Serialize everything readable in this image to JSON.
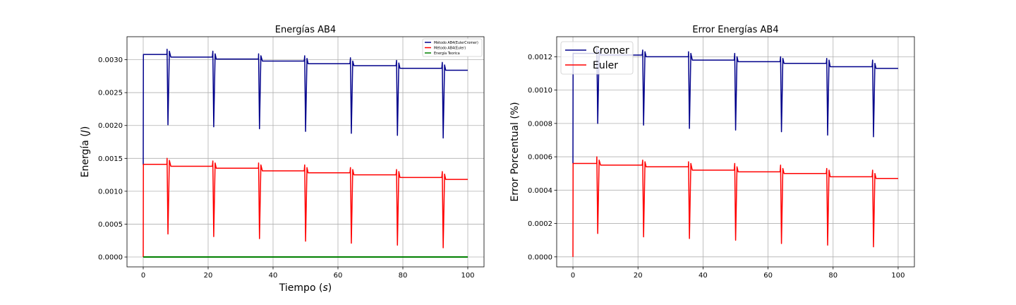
{
  "chart_data": [
    {
      "type": "line",
      "title": "Energías AB4",
      "xlabel": "Tiempo ($s$)",
      "ylabel": "Energía ($J$)",
      "xlabel_display": [
        "Tiempo (",
        "s",
        ")"
      ],
      "ylabel_display": [
        "Energía (",
        "J",
        ")"
      ],
      "xlim": [
        -5,
        105
      ],
      "ylim": [
        -0.00015,
        0.00335
      ],
      "xticks": [
        0,
        20,
        40,
        60,
        80,
        100
      ],
      "xtick_labels": [
        "0",
        "20",
        "40",
        "60",
        "80",
        "100"
      ],
      "yticks": [
        0,
        0.0005,
        0.001,
        0.0015,
        0.002,
        0.0025,
        0.003
      ],
      "ytick_labels": [
        "0.0000",
        "0.0005",
        "0.0010",
        "0.0015",
        "0.0020",
        "0.0025",
        "0.0030"
      ],
      "grid": true,
      "legend_position": "top-right",
      "legend_size": "small",
      "series": [
        {
          "name": "Método AB4(EulerCromer)",
          "color": "#00008b",
          "x_start": 0,
          "x_end": 100,
          "initial_value": 0.0014,
          "plateaus": [
            {
              "x_from": 0,
              "x_to": 7.3,
              "value": 0.00308
            },
            {
              "x_from": 8.5,
              "x_to": 21.3,
              "value": 0.00304
            },
            {
              "x_from": 22.5,
              "x_to": 35.5,
              "value": 0.00301
            },
            {
              "x_from": 36.7,
              "x_to": 49.6,
              "value": 0.00298
            },
            {
              "x_from": 50.8,
              "x_to": 63.7,
              "value": 0.00294
            },
            {
              "x_from": 64.9,
              "x_to": 77.9,
              "value": 0.00291
            },
            {
              "x_from": 79.1,
              "x_to": 92.0,
              "value": 0.00287
            },
            {
              "x_from": 93.2,
              "x_to": 100,
              "value": 0.00284
            }
          ],
          "spikes": [
            {
              "x": 7.5,
              "peak": 0.00316,
              "dip": 0.00201,
              "rebound": 0.00313
            },
            {
              "x": 21.6,
              "peak": 0.00313,
              "dip": 0.00198,
              "rebound": 0.00309
            },
            {
              "x": 35.7,
              "peak": 0.00309,
              "dip": 0.00195,
              "rebound": 0.00306
            },
            {
              "x": 49.9,
              "peak": 0.00306,
              "dip": 0.00191,
              "rebound": 0.00302
            },
            {
              "x": 64.0,
              "peak": 0.00303,
              "dip": 0.00188,
              "rebound": 0.00298
            },
            {
              "x": 78.2,
              "peak": 0.00299,
              "dip": 0.00185,
              "rebound": 0.00295
            },
            {
              "x": 92.3,
              "peak": 0.00296,
              "dip": 0.00181,
              "rebound": 0.00292
            }
          ]
        },
        {
          "name": "Método AB4(Euler)",
          "color": "#ff0000",
          "x_start": 0,
          "x_end": 100,
          "initial_value": 0.0,
          "plateaus": [
            {
              "x_from": 0,
              "x_to": 7.3,
              "value": 0.00141
            },
            {
              "x_from": 8.5,
              "x_to": 21.3,
              "value": 0.00138
            },
            {
              "x_from": 22.5,
              "x_to": 35.5,
              "value": 0.00135
            },
            {
              "x_from": 36.7,
              "x_to": 49.6,
              "value": 0.00131
            },
            {
              "x_from": 50.8,
              "x_to": 63.7,
              "value": 0.00128
            },
            {
              "x_from": 64.9,
              "x_to": 77.9,
              "value": 0.00125
            },
            {
              "x_from": 79.1,
              "x_to": 92.0,
              "value": 0.00121
            },
            {
              "x_from": 93.2,
              "x_to": 100,
              "value": 0.00118
            }
          ],
          "spikes": [
            {
              "x": 7.5,
              "peak": 0.0015,
              "dip": 0.00035,
              "rebound": 0.00147
            },
            {
              "x": 21.6,
              "peak": 0.00146,
              "dip": 0.00031,
              "rebound": 0.00143
            },
            {
              "x": 35.7,
              "peak": 0.00143,
              "dip": 0.00028,
              "rebound": 0.0014
            },
            {
              "x": 49.9,
              "peak": 0.0014,
              "dip": 0.00024,
              "rebound": 0.00136
            },
            {
              "x": 64.0,
              "peak": 0.00136,
              "dip": 0.00021,
              "rebound": 0.00133
            },
            {
              "x": 78.2,
              "peak": 0.00133,
              "dip": 0.00018,
              "rebound": 0.0013
            },
            {
              "x": 92.3,
              "peak": 0.0013,
              "dip": 0.00014,
              "rebound": 0.00126
            }
          ]
        },
        {
          "name": "Energía Teorica",
          "color": "#008000",
          "x": [
            0,
            100
          ],
          "y": [
            0.0,
            0.0
          ],
          "thick": true
        }
      ]
    },
    {
      "type": "line",
      "title": "Error Energías AB4",
      "xlabel": "",
      "ylabel": "Error Porcentual (%)",
      "xlim": [
        -5,
        105
      ],
      "ylim": [
        -6e-05,
        0.00132
      ],
      "xticks": [
        0,
        20,
        40,
        60,
        80,
        100
      ],
      "xtick_labels": [
        "0",
        "20",
        "40",
        "60",
        "80",
        "100"
      ],
      "yticks": [
        0,
        0.0002,
        0.0004,
        0.0006,
        0.0008,
        0.001,
        0.0012
      ],
      "ytick_labels": [
        "0.0000",
        "0.0002",
        "0.0004",
        "0.0006",
        "0.0008",
        "0.0010",
        "0.0012"
      ],
      "grid": true,
      "legend_position": "top-left",
      "legend_size": "large",
      "series": [
        {
          "name": "Cromer",
          "color": "#00008b",
          "x_start": 0,
          "x_end": 100,
          "initial_value": 0.00056,
          "plateaus": [
            {
              "x_from": 0,
              "x_to": 7.3,
              "value": 0.00122
            },
            {
              "x_from": 8.5,
              "x_to": 21.3,
              "value": 0.00121
            },
            {
              "x_from": 22.5,
              "x_to": 35.5,
              "value": 0.0012
            },
            {
              "x_from": 36.7,
              "x_to": 49.6,
              "value": 0.00118
            },
            {
              "x_from": 50.8,
              "x_to": 63.7,
              "value": 0.00117
            },
            {
              "x_from": 64.9,
              "x_to": 77.9,
              "value": 0.00116
            },
            {
              "x_from": 79.1,
              "x_to": 92.0,
              "value": 0.00114
            },
            {
              "x_from": 93.2,
              "x_to": 100,
              "value": 0.00113
            }
          ],
          "spikes": [
            {
              "x": 7.5,
              "peak": 0.00125,
              "dip": 0.0008,
              "rebound": 0.00124
            },
            {
              "x": 21.6,
              "peak": 0.00124,
              "dip": 0.00079,
              "rebound": 0.00123
            },
            {
              "x": 35.7,
              "peak": 0.00123,
              "dip": 0.00077,
              "rebound": 0.00122
            },
            {
              "x": 49.9,
              "peak": 0.00122,
              "dip": 0.00076,
              "rebound": 0.0012
            },
            {
              "x": 64.0,
              "peak": 0.0012,
              "dip": 0.00075,
              "rebound": 0.00119
            },
            {
              "x": 78.2,
              "peak": 0.00119,
              "dip": 0.00073,
              "rebound": 0.00118
            },
            {
              "x": 92.3,
              "peak": 0.00118,
              "dip": 0.00072,
              "rebound": 0.00116
            }
          ]
        },
        {
          "name": "Euler",
          "color": "#ff0000",
          "x_start": 0,
          "x_end": 100,
          "initial_value": 0.0,
          "plateaus": [
            {
              "x_from": 0,
              "x_to": 7.3,
              "value": 0.00056
            },
            {
              "x_from": 8.5,
              "x_to": 21.3,
              "value": 0.00055
            },
            {
              "x_from": 22.5,
              "x_to": 35.5,
              "value": 0.00054
            },
            {
              "x_from": 36.7,
              "x_to": 49.6,
              "value": 0.00052
            },
            {
              "x_from": 50.8,
              "x_to": 63.7,
              "value": 0.00051
            },
            {
              "x_from": 64.9,
              "x_to": 77.9,
              "value": 0.0005
            },
            {
              "x_from": 79.1,
              "x_to": 92.0,
              "value": 0.00048
            },
            {
              "x_from": 93.2,
              "x_to": 100,
              "value": 0.00047
            }
          ],
          "spikes": [
            {
              "x": 7.5,
              "peak": 0.0006,
              "dip": 0.00014,
              "rebound": 0.00058
            },
            {
              "x": 21.6,
              "peak": 0.00058,
              "dip": 0.00012,
              "rebound": 0.00057
            },
            {
              "x": 35.7,
              "peak": 0.00057,
              "dip": 0.00011,
              "rebound": 0.00056
            },
            {
              "x": 49.9,
              "peak": 0.00056,
              "dip": 0.0001,
              "rebound": 0.00054
            },
            {
              "x": 64.0,
              "peak": 0.00055,
              "dip": 8e-05,
              "rebound": 0.00053
            },
            {
              "x": 78.2,
              "peak": 0.00053,
              "dip": 7e-05,
              "rebound": 0.00052
            },
            {
              "x": 92.3,
              "peak": 0.00052,
              "dip": 6e-05,
              "rebound": 0.0005
            }
          ]
        }
      ]
    }
  ]
}
